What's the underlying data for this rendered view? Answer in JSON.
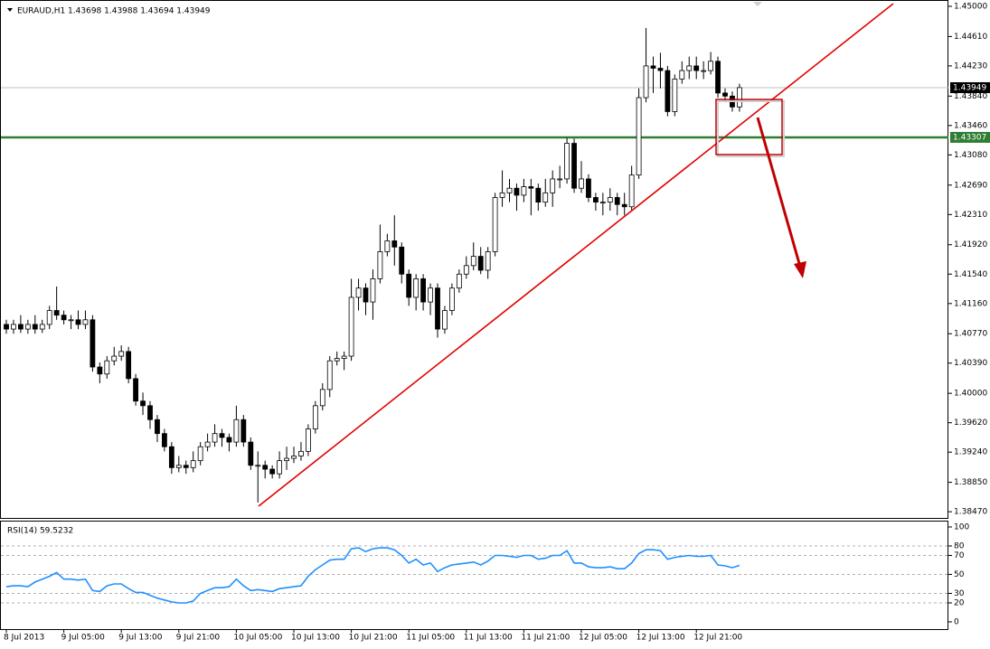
{
  "chart_data": [
    {
      "type": "candlestick",
      "title": "EURAUD,H1  1.43698 1.43988 1.43694 1.43949",
      "categories": [
        "8 Jul 2013",
        null,
        null,
        null,
        null,
        null,
        null,
        null,
        "9 Jul 05:00",
        null,
        null,
        null,
        null,
        null,
        null,
        null,
        "9 Jul 13:00",
        null,
        null,
        null,
        null,
        null,
        null,
        null,
        "9 Jul 21:00",
        null,
        null,
        null,
        null,
        null,
        null,
        null,
        "10 Jul 05:00",
        null,
        null,
        null,
        null,
        null,
        null,
        null,
        "10 Jul 13:00",
        null,
        null,
        null,
        null,
        null,
        null,
        null,
        "10 Jul 21:00",
        null,
        null,
        null,
        null,
        null,
        null,
        null,
        "11 Jul 05:00",
        null,
        null,
        null,
        null,
        null,
        null,
        null,
        "11 Jul 13:00",
        null,
        null,
        null,
        null,
        null,
        null,
        null,
        "11 Jul 21:00",
        null,
        null,
        null,
        null,
        null,
        null,
        null,
        "12 Jul 05:00",
        null,
        null,
        null,
        null,
        null,
        null,
        null,
        "12 Jul 13:00",
        null,
        null,
        null,
        null,
        null,
        null,
        null,
        "12 Jul 21:00",
        null,
        null,
        null,
        null,
        null,
        null
      ],
      "open": [
        1.4089,
        1.4083,
        1.4089,
        1.4083,
        1.4089,
        1.4083,
        1.4089,
        1.4107,
        1.4101,
        1.4095,
        1.4095,
        1.4089,
        1.4095,
        1.4034,
        1.4025,
        1.4042,
        1.4048,
        1.4054,
        1.4019,
        1.399,
        1.3984,
        1.3966,
        1.3948,
        1.3931,
        1.3904,
        1.3907,
        1.3904,
        1.3913,
        1.3931,
        1.3937,
        1.3948,
        1.3943,
        1.3937,
        1.3966,
        1.3937,
        1.3907,
        1.3907,
        1.3902,
        1.3896,
        1.3913,
        1.3916,
        1.3919,
        1.3925,
        1.3954,
        1.3984,
        1.4005,
        1.4042,
        1.4045,
        1.4048,
        1.4124,
        1.4136,
        1.4118,
        1.4148,
        1.4183,
        1.4197,
        1.4189,
        1.4154,
        1.4124,
        1.4148,
        1.4118,
        1.4136,
        1.4083,
        1.4107,
        1.4136,
        1.4154,
        1.4165,
        1.4177,
        1.4159,
        1.4183,
        1.4253,
        1.4259,
        1.4265,
        1.4256,
        1.4267,
        1.4265,
        1.4247,
        1.4259,
        1.4277,
        1.4277,
        1.4323,
        1.4265,
        1.4277,
        1.4253,
        1.4247,
        1.4247,
        1.4253,
        1.4244,
        1.4241,
        1.4282,
        1.4382,
        1.4423,
        1.442,
        1.4417,
        1.4364,
        1.4406,
        1.4417,
        1.4423,
        1.4417,
        1.4417,
        1.4429,
        1.4388,
        1.4384,
        1.437
      ],
      "high": [
        1.4095,
        1.4095,
        1.4101,
        1.4095,
        1.4101,
        1.4095,
        1.4113,
        1.4138,
        1.4107,
        1.4101,
        1.4107,
        1.4107,
        1.4101,
        1.404,
        1.4048,
        1.406,
        1.4062,
        1.406,
        1.4025,
        1.4001,
        1.399,
        1.3972,
        1.3954,
        1.3937,
        1.3919,
        1.3913,
        1.3925,
        1.3937,
        1.3948,
        1.396,
        1.3954,
        1.3948,
        1.3984,
        1.3972,
        1.3943,
        1.3925,
        1.3913,
        1.3907,
        1.3925,
        1.3931,
        1.3931,
        1.3937,
        1.396,
        1.399,
        1.4013,
        1.4048,
        1.4054,
        1.4054,
        1.4148,
        1.4148,
        1.4142,
        1.416,
        1.4218,
        1.4206,
        1.423,
        1.4195,
        1.416,
        1.4154,
        1.4154,
        1.4142,
        1.4142,
        1.4113,
        1.4142,
        1.416,
        1.4177,
        1.4195,
        1.4189,
        1.4189,
        1.4259,
        1.4288,
        1.4277,
        1.4271,
        1.4277,
        1.4277,
        1.4271,
        1.4277,
        1.4288,
        1.4294,
        1.433,
        1.4329,
        1.43,
        1.4283,
        1.4259,
        1.4259,
        1.4265,
        1.4259,
        1.4259,
        1.4294,
        1.4394,
        1.4472,
        1.4435,
        1.444,
        1.4423,
        1.4412,
        1.4429,
        1.4435,
        1.4435,
        1.4429,
        1.4441,
        1.4435,
        1.4394,
        1.439,
        1.44
      ],
      "low": [
        1.4077,
        1.4077,
        1.4078,
        1.4077,
        1.4077,
        1.4078,
        1.4083,
        1.4095,
        1.4089,
        1.4083,
        1.4083,
        1.4083,
        1.4028,
        1.4013,
        1.4019,
        1.4036,
        1.4042,
        1.4013,
        1.3984,
        1.3972,
        1.3954,
        1.3937,
        1.3925,
        1.3896,
        1.3898,
        1.3896,
        1.3898,
        1.3907,
        1.3925,
        1.3931,
        1.3931,
        1.3925,
        1.3931,
        1.3931,
        1.3901,
        1.3859,
        1.389,
        1.389,
        1.389,
        1.3901,
        1.391,
        1.3913,
        1.3919,
        1.3948,
        1.3978,
        1.3995,
        1.4036,
        1.403,
        1.4042,
        1.4107,
        1.4101,
        1.4095,
        1.4142,
        1.4177,
        1.4165,
        1.4142,
        1.4113,
        1.4107,
        1.4107,
        1.4101,
        1.4072,
        1.4077,
        1.4101,
        1.413,
        1.4148,
        1.4159,
        1.4154,
        1.4148,
        1.4177,
        1.4241,
        1.4247,
        1.4236,
        1.4247,
        1.423,
        1.4236,
        1.4241,
        1.4241,
        1.4265,
        1.4271,
        1.4259,
        1.4259,
        1.4247,
        1.4236,
        1.423,
        1.4236,
        1.423,
        1.423,
        1.4236,
        1.4277,
        1.4376,
        1.4388,
        1.4394,
        1.4358,
        1.4358,
        1.44,
        1.4406,
        1.4406,
        1.4406,
        1.4412,
        1.4382,
        1.4376,
        1.4364,
        1.4364
      ],
      "close": [
        1.4083,
        1.4089,
        1.4083,
        1.4089,
        1.4083,
        1.4089,
        1.4107,
        1.4101,
        1.4095,
        1.4095,
        1.4089,
        1.4095,
        1.4034,
        1.4025,
        1.4042,
        1.4048,
        1.4054,
        1.4019,
        1.399,
        1.3984,
        1.3966,
        1.3948,
        1.3931,
        1.3904,
        1.3907,
        1.3904,
        1.3913,
        1.3931,
        1.3937,
        1.3948,
        1.3943,
        1.3937,
        1.3966,
        1.3937,
        1.3907,
        1.3907,
        1.3902,
        1.3896,
        1.3913,
        1.3916,
        1.3919,
        1.3925,
        1.3954,
        1.3984,
        1.4005,
        1.4042,
        1.4045,
        1.4048,
        1.4124,
        1.4136,
        1.4118,
        1.4148,
        1.4183,
        1.4197,
        1.4189,
        1.4154,
        1.4124,
        1.4148,
        1.4118,
        1.4136,
        1.4083,
        1.4107,
        1.4136,
        1.4154,
        1.4165,
        1.4177,
        1.4159,
        1.4183,
        1.4253,
        1.4259,
        1.4265,
        1.4256,
        1.4267,
        1.4265,
        1.4247,
        1.4259,
        1.4277,
        1.4277,
        1.4323,
        1.4265,
        1.4277,
        1.4253,
        1.4247,
        1.4247,
        1.4253,
        1.4244,
        1.4241,
        1.4282,
        1.4382,
        1.4423,
        1.442,
        1.4417,
        1.4364,
        1.4406,
        1.4417,
        1.4423,
        1.4417,
        1.4417,
        1.4429,
        1.4388,
        1.4384,
        1.437,
        1.4395
      ],
      "up_color": "#ffffff",
      "down_color": "#000000",
      "ylim": [
        1.3839,
        1.4507
      ],
      "yticks": [
        {
          "value": 1.45,
          "label": "1.45000"
        },
        {
          "value": 1.4461,
          "label": "1.44610"
        },
        {
          "value": 1.4423,
          "label": "1.44230"
        },
        {
          "value": 1.4384,
          "label": "1.43840"
        },
        {
          "value": 1.4346,
          "label": "1.43460"
        },
        {
          "value": 1.4308,
          "label": "1.43080"
        },
        {
          "value": 1.4269,
          "label": "1.42690"
        },
        {
          "value": 1.4231,
          "label": "1.42310"
        },
        {
          "value": 1.4192,
          "label": "1.41920"
        },
        {
          "value": 1.4154,
          "label": "1.41540"
        },
        {
          "value": 1.4116,
          "label": "1.41160"
        },
        {
          "value": 1.4077,
          "label": "1.40770"
        },
        {
          "value": 1.4039,
          "label": "1.40390"
        },
        {
          "value": 1.4,
          "label": "1.40000"
        },
        {
          "value": 1.3962,
          "label": "1.39620"
        },
        {
          "value": 1.3924,
          "label": "1.39240"
        },
        {
          "value": 1.3885,
          "label": "1.38850"
        },
        {
          "value": 1.3847,
          "label": "1.38470"
        }
      ],
      "hlines": [
        {
          "value": 1.43949,
          "color": "#c0c0c0",
          "label_bg": "#000000"
        },
        {
          "value": 1.43307,
          "color": "#2e7d32",
          "label_bg": "#2e7d32"
        }
      ]
    },
    {
      "type": "line",
      "title": "RSI(14) 59.5232",
      "color": "#1e90ff",
      "values": [
        37,
        38,
        38,
        37,
        42,
        45,
        48,
        52,
        45,
        45,
        44,
        45,
        33,
        32,
        38,
        40,
        40,
        35,
        31,
        31,
        28,
        25,
        23,
        21,
        20,
        20,
        22,
        30,
        33,
        36,
        36,
        37,
        45,
        38,
        33,
        34,
        33,
        32,
        35,
        36,
        37,
        38,
        48,
        55,
        60,
        65,
        66,
        66,
        77,
        78,
        74,
        77,
        78,
        78,
        76,
        70,
        62,
        66,
        60,
        62,
        53,
        57,
        60,
        61,
        62,
        63,
        60,
        64,
        70,
        70,
        69,
        68,
        70,
        70,
        66,
        67,
        70,
        70,
        75,
        62,
        62,
        58,
        57,
        57,
        58,
        56,
        56,
        62,
        72,
        76,
        76,
        75,
        66,
        68,
        69,
        70,
        69,
        69,
        70,
        60,
        59,
        57,
        59.5232
      ],
      "ylim": [
        -8.6,
        105.7
      ],
      "yticks": [
        100,
        80,
        70,
        50,
        30,
        20,
        0
      ]
    }
  ]
}
